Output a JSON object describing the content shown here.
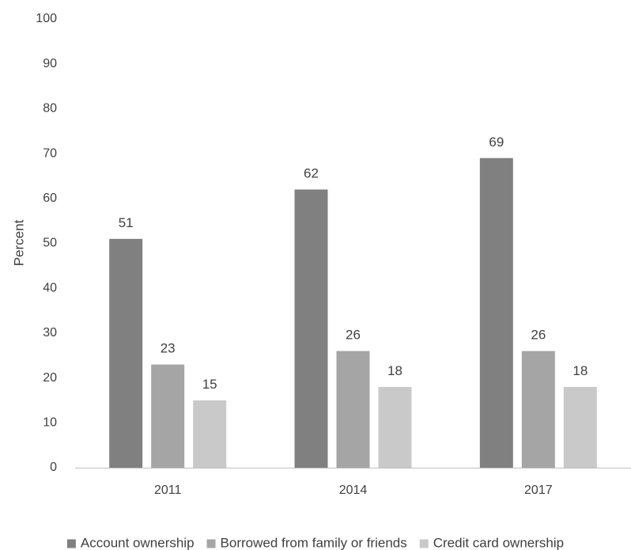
{
  "chart_data": {
    "type": "bar",
    "title": "",
    "xlabel": "",
    "ylabel": "Percent",
    "ylim": [
      0,
      100
    ],
    "yticks": [
      0,
      10,
      20,
      30,
      40,
      50,
      60,
      70,
      80,
      90,
      100
    ],
    "grid": false,
    "legend_position": "bottom",
    "categories": [
      "2011",
      "2014",
      "2017"
    ],
    "series": [
      {
        "name": "Account ownership",
        "values": [
          51,
          62,
          69
        ],
        "color": "#808080"
      },
      {
        "name": "Borrowed from family or friends",
        "values": [
          23,
          26,
          26
        ],
        "color": "#a5a5a5"
      },
      {
        "name": "Credit card ownership",
        "values": [
          15,
          18,
          18
        ],
        "color": "#c9c9c9"
      }
    ]
  }
}
